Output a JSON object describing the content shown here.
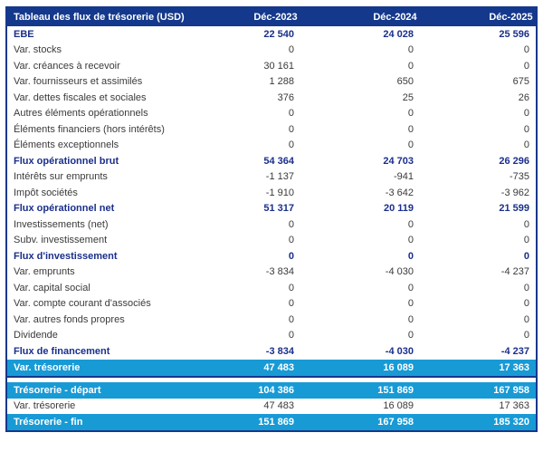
{
  "colors": {
    "header_background": "#14388c",
    "highlight_background": "#189ad5",
    "bold_row_text": "#1a2f8c",
    "normal_row_text": "#3a3a3a",
    "header_text": "#ffffff"
  },
  "table": {
    "title": "Tableau des flux de trésorerie (USD)",
    "columns": [
      "Déc-2023",
      "Déc-2024",
      "Déc-2025"
    ],
    "rows": [
      {
        "label": "EBE",
        "values": [
          "22 540",
          "24 028",
          "25 596"
        ],
        "style": "bold"
      },
      {
        "label": "Var. stocks",
        "values": [
          "0",
          "0",
          "0"
        ],
        "style": "normal"
      },
      {
        "label": "Var. créances à recevoir",
        "values": [
          "30 161",
          "0",
          "0"
        ],
        "style": "normal"
      },
      {
        "label": "Var. fournisseurs et assimilés",
        "values": [
          "1 288",
          "650",
          "675"
        ],
        "style": "normal"
      },
      {
        "label": "Var. dettes fiscales et sociales",
        "values": [
          "376",
          "25",
          "26"
        ],
        "style": "normal"
      },
      {
        "label": "Autres éléments opérationnels",
        "values": [
          "0",
          "0",
          "0"
        ],
        "style": "normal"
      },
      {
        "label": "Éléments financiers (hors intérêts)",
        "values": [
          "0",
          "0",
          "0"
        ],
        "style": "normal"
      },
      {
        "label": "Éléments exceptionnels",
        "values": [
          "0",
          "0",
          "0"
        ],
        "style": "normal"
      },
      {
        "label": "Flux opérationnel brut",
        "values": [
          "54 364",
          "24 703",
          "26 296"
        ],
        "style": "bold"
      },
      {
        "label": "Intérêts sur emprunts",
        "values": [
          "-1 137",
          "-941",
          "-735"
        ],
        "style": "normal"
      },
      {
        "label": "Impôt sociétés",
        "values": [
          "-1 910",
          "-3 642",
          "-3 962"
        ],
        "style": "normal"
      },
      {
        "label": "Flux opérationnel net",
        "values": [
          "51 317",
          "20 119",
          "21 599"
        ],
        "style": "bold"
      },
      {
        "label": "Investissements (net)",
        "values": [
          "0",
          "0",
          "0"
        ],
        "style": "normal"
      },
      {
        "label": "Subv. investissement",
        "values": [
          "0",
          "0",
          "0"
        ],
        "style": "normal"
      },
      {
        "label": "Flux d'investissement",
        "values": [
          "0",
          "0",
          "0"
        ],
        "style": "bold"
      },
      {
        "label": "Var. emprunts",
        "values": [
          "-3 834",
          "-4 030",
          "-4 237"
        ],
        "style": "normal"
      },
      {
        "label": "Var. capital social",
        "values": [
          "0",
          "0",
          "0"
        ],
        "style": "normal"
      },
      {
        "label": "Var. compte courant d'associés",
        "values": [
          "0",
          "0",
          "0"
        ],
        "style": "normal"
      },
      {
        "label": "Var. autres fonds propres",
        "values": [
          "0",
          "0",
          "0"
        ],
        "style": "normal"
      },
      {
        "label": "Dividende",
        "values": [
          "0",
          "0",
          "0"
        ],
        "style": "normal"
      },
      {
        "label": "Flux de financement",
        "values": [
          "-3 834",
          "-4 030",
          "-4 237"
        ],
        "style": "bold"
      },
      {
        "label": "Var. trésorerie",
        "values": [
          "47 483",
          "16 089",
          "17 363"
        ],
        "style": "highlight"
      }
    ],
    "summary_rows": [
      {
        "label": "Trésorerie - départ",
        "values": [
          "104 386",
          "151 869",
          "167 958"
        ],
        "style": "highlight"
      },
      {
        "label": "Var. trésorerie",
        "values": [
          "47 483",
          "16 089",
          "17 363"
        ],
        "style": "normal"
      },
      {
        "label": "Trésorerie - fin",
        "values": [
          "151 869",
          "167 958",
          "185 320"
        ],
        "style": "highlight"
      }
    ]
  }
}
